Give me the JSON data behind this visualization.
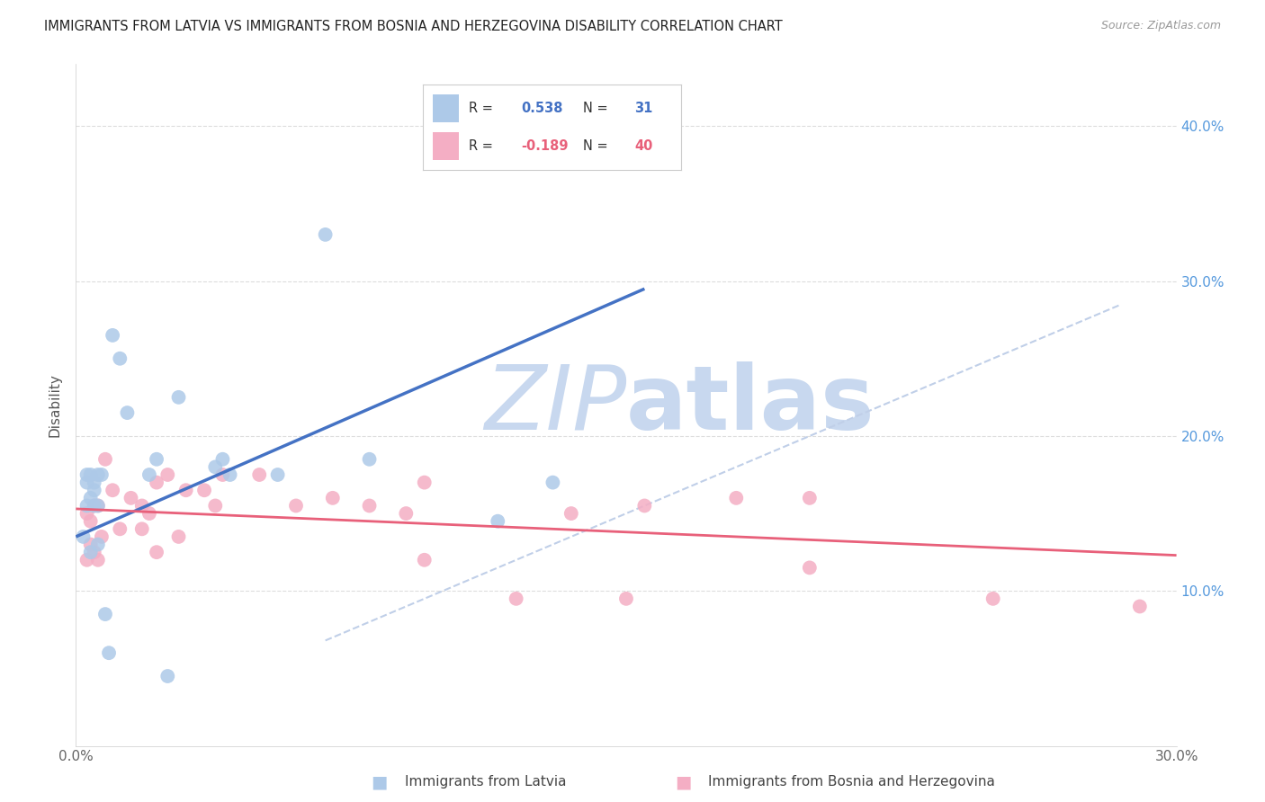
{
  "title": "IMMIGRANTS FROM LATVIA VS IMMIGRANTS FROM BOSNIA AND HERZEGOVINA DISABILITY CORRELATION CHART",
  "source": "Source: ZipAtlas.com",
  "ylabel_label": "Disability",
  "xlim": [
    0.0,
    0.3
  ],
  "ylim": [
    0.0,
    0.44
  ],
  "background_color": "#ffffff",
  "grid_color": "#dddddd",
  "latvia_color": "#adc9e8",
  "bosnia_color": "#f4aec4",
  "latvia_line_color": "#4472c4",
  "bosnia_line_color": "#e8607a",
  "diag_line_color": "#c0cfe8",
  "latvia_R": 0.538,
  "latvia_N": 31,
  "bosnia_R": -0.189,
  "bosnia_N": 40,
  "latvia_scatter_x": [
    0.002,
    0.003,
    0.003,
    0.003,
    0.004,
    0.004,
    0.004,
    0.005,
    0.005,
    0.005,
    0.006,
    0.006,
    0.006,
    0.007,
    0.008,
    0.009,
    0.01,
    0.012,
    0.014,
    0.02,
    0.022,
    0.025,
    0.028,
    0.038,
    0.04,
    0.042,
    0.055,
    0.068,
    0.08,
    0.115,
    0.13
  ],
  "latvia_scatter_y": [
    0.135,
    0.155,
    0.17,
    0.175,
    0.125,
    0.16,
    0.175,
    0.155,
    0.165,
    0.17,
    0.13,
    0.155,
    0.175,
    0.175,
    0.085,
    0.06,
    0.265,
    0.25,
    0.215,
    0.175,
    0.185,
    0.045,
    0.225,
    0.18,
    0.185,
    0.175,
    0.175,
    0.33,
    0.185,
    0.145,
    0.17
  ],
  "bosnia_scatter_x": [
    0.003,
    0.003,
    0.004,
    0.004,
    0.005,
    0.005,
    0.006,
    0.006,
    0.007,
    0.008,
    0.01,
    0.012,
    0.015,
    0.018,
    0.018,
    0.02,
    0.022,
    0.022,
    0.025,
    0.028,
    0.03,
    0.035,
    0.038,
    0.04,
    0.05,
    0.06,
    0.07,
    0.08,
    0.09,
    0.095,
    0.095,
    0.12,
    0.135,
    0.15,
    0.155,
    0.18,
    0.2,
    0.2,
    0.25,
    0.29
  ],
  "bosnia_scatter_y": [
    0.15,
    0.12,
    0.145,
    0.13,
    0.155,
    0.125,
    0.155,
    0.12,
    0.135,
    0.185,
    0.165,
    0.14,
    0.16,
    0.155,
    0.14,
    0.15,
    0.17,
    0.125,
    0.175,
    0.135,
    0.165,
    0.165,
    0.155,
    0.175,
    0.175,
    0.155,
    0.16,
    0.155,
    0.15,
    0.12,
    0.17,
    0.095,
    0.15,
    0.095,
    0.155,
    0.16,
    0.16,
    0.115,
    0.095,
    0.09
  ],
  "latvia_line_x": [
    0.0,
    0.155
  ],
  "latvia_line_y": [
    0.135,
    0.295
  ],
  "bosnia_line_x": [
    0.0,
    0.3
  ],
  "bosnia_line_y": [
    0.153,
    0.123
  ],
  "diag_line_x": [
    0.068,
    0.285
  ],
  "diag_line_y": [
    0.068,
    0.285
  ],
  "watermark_zip": "ZIP",
  "watermark_atlas": "atlas",
  "watermark_color_zip": "#c8d8ef",
  "watermark_color_atlas": "#c8d8ef",
  "watermark_fontsize": 72
}
